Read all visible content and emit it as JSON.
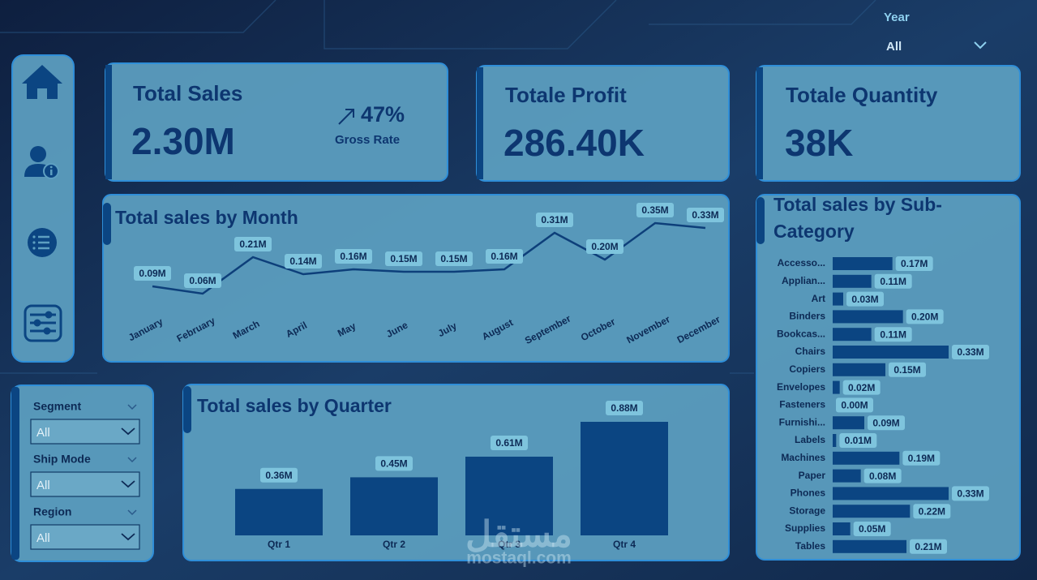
{
  "header": {
    "year_label": "Year",
    "year_value": "All"
  },
  "kpis": [
    {
      "title": "Total Sales",
      "value": "2.30M",
      "rate": "47%",
      "rate_label": "Gross Rate"
    },
    {
      "title": "Totale Profit",
      "value": "286.40K"
    },
    {
      "title": "Totale Quantity",
      "value": "38K"
    }
  ],
  "filters": [
    {
      "label": "Segment",
      "value": "All"
    },
    {
      "label": "Ship Mode",
      "value": "All"
    },
    {
      "label": "Region",
      "value": "All"
    }
  ],
  "watermark": {
    "arabic": "مستقل",
    "latin": "mostaql.com"
  },
  "chart_data": [
    {
      "type": "line",
      "title": "Total sales by Month",
      "color": "#0d3f7a",
      "categories": [
        "January",
        "February",
        "March",
        "April",
        "May",
        "June",
        "July",
        "August",
        "September",
        "October",
        "November",
        "December"
      ],
      "values": [
        0.09,
        0.06,
        0.21,
        0.14,
        0.16,
        0.15,
        0.15,
        0.16,
        0.31,
        0.2,
        0.35,
        0.33
      ],
      "value_labels": [
        "0.09M",
        "0.06M",
        "0.21M",
        "0.14M",
        "0.16M",
        "0.15M",
        "0.15M",
        "0.16M",
        "0.31M",
        "0.20M",
        "0.35M",
        "0.33M"
      ]
    },
    {
      "type": "bar",
      "orientation": "vertical",
      "title": "Total sales by Quarter",
      "color": "#0b4582",
      "categories": [
        "Qtr 1",
        "Qtr 2",
        "Qtr 3",
        "Qtr 4"
      ],
      "values": [
        0.36,
        0.45,
        0.61,
        0.88
      ],
      "value_labels": [
        "0.36M",
        "0.45M",
        "0.61M",
        "0.88M"
      ]
    },
    {
      "type": "bar",
      "orientation": "horizontal",
      "title": "Total sales by Sub-Category",
      "color": "#0b4582",
      "categories": [
        "Accesso...",
        "Applian...",
        "Art",
        "Binders",
        "Bookcas...",
        "Chairs",
        "Copiers",
        "Envelopes",
        "Fasteners",
        "Furnishi...",
        "Labels",
        "Machines",
        "Paper",
        "Phones",
        "Storage",
        "Supplies",
        "Tables"
      ],
      "values": [
        0.17,
        0.11,
        0.03,
        0.2,
        0.11,
        0.33,
        0.15,
        0.02,
        0.0,
        0.09,
        0.01,
        0.19,
        0.08,
        0.33,
        0.22,
        0.05,
        0.21
      ],
      "value_labels": [
        "0.17M",
        "0.11M",
        "0.03M",
        "0.20M",
        "0.11M",
        "0.33M",
        "0.15M",
        "0.02M",
        "0.00M",
        "0.09M",
        "0.01M",
        "0.19M",
        "0.08M",
        "0.33M",
        "0.22M",
        "0.05M",
        "0.21M"
      ]
    }
  ]
}
